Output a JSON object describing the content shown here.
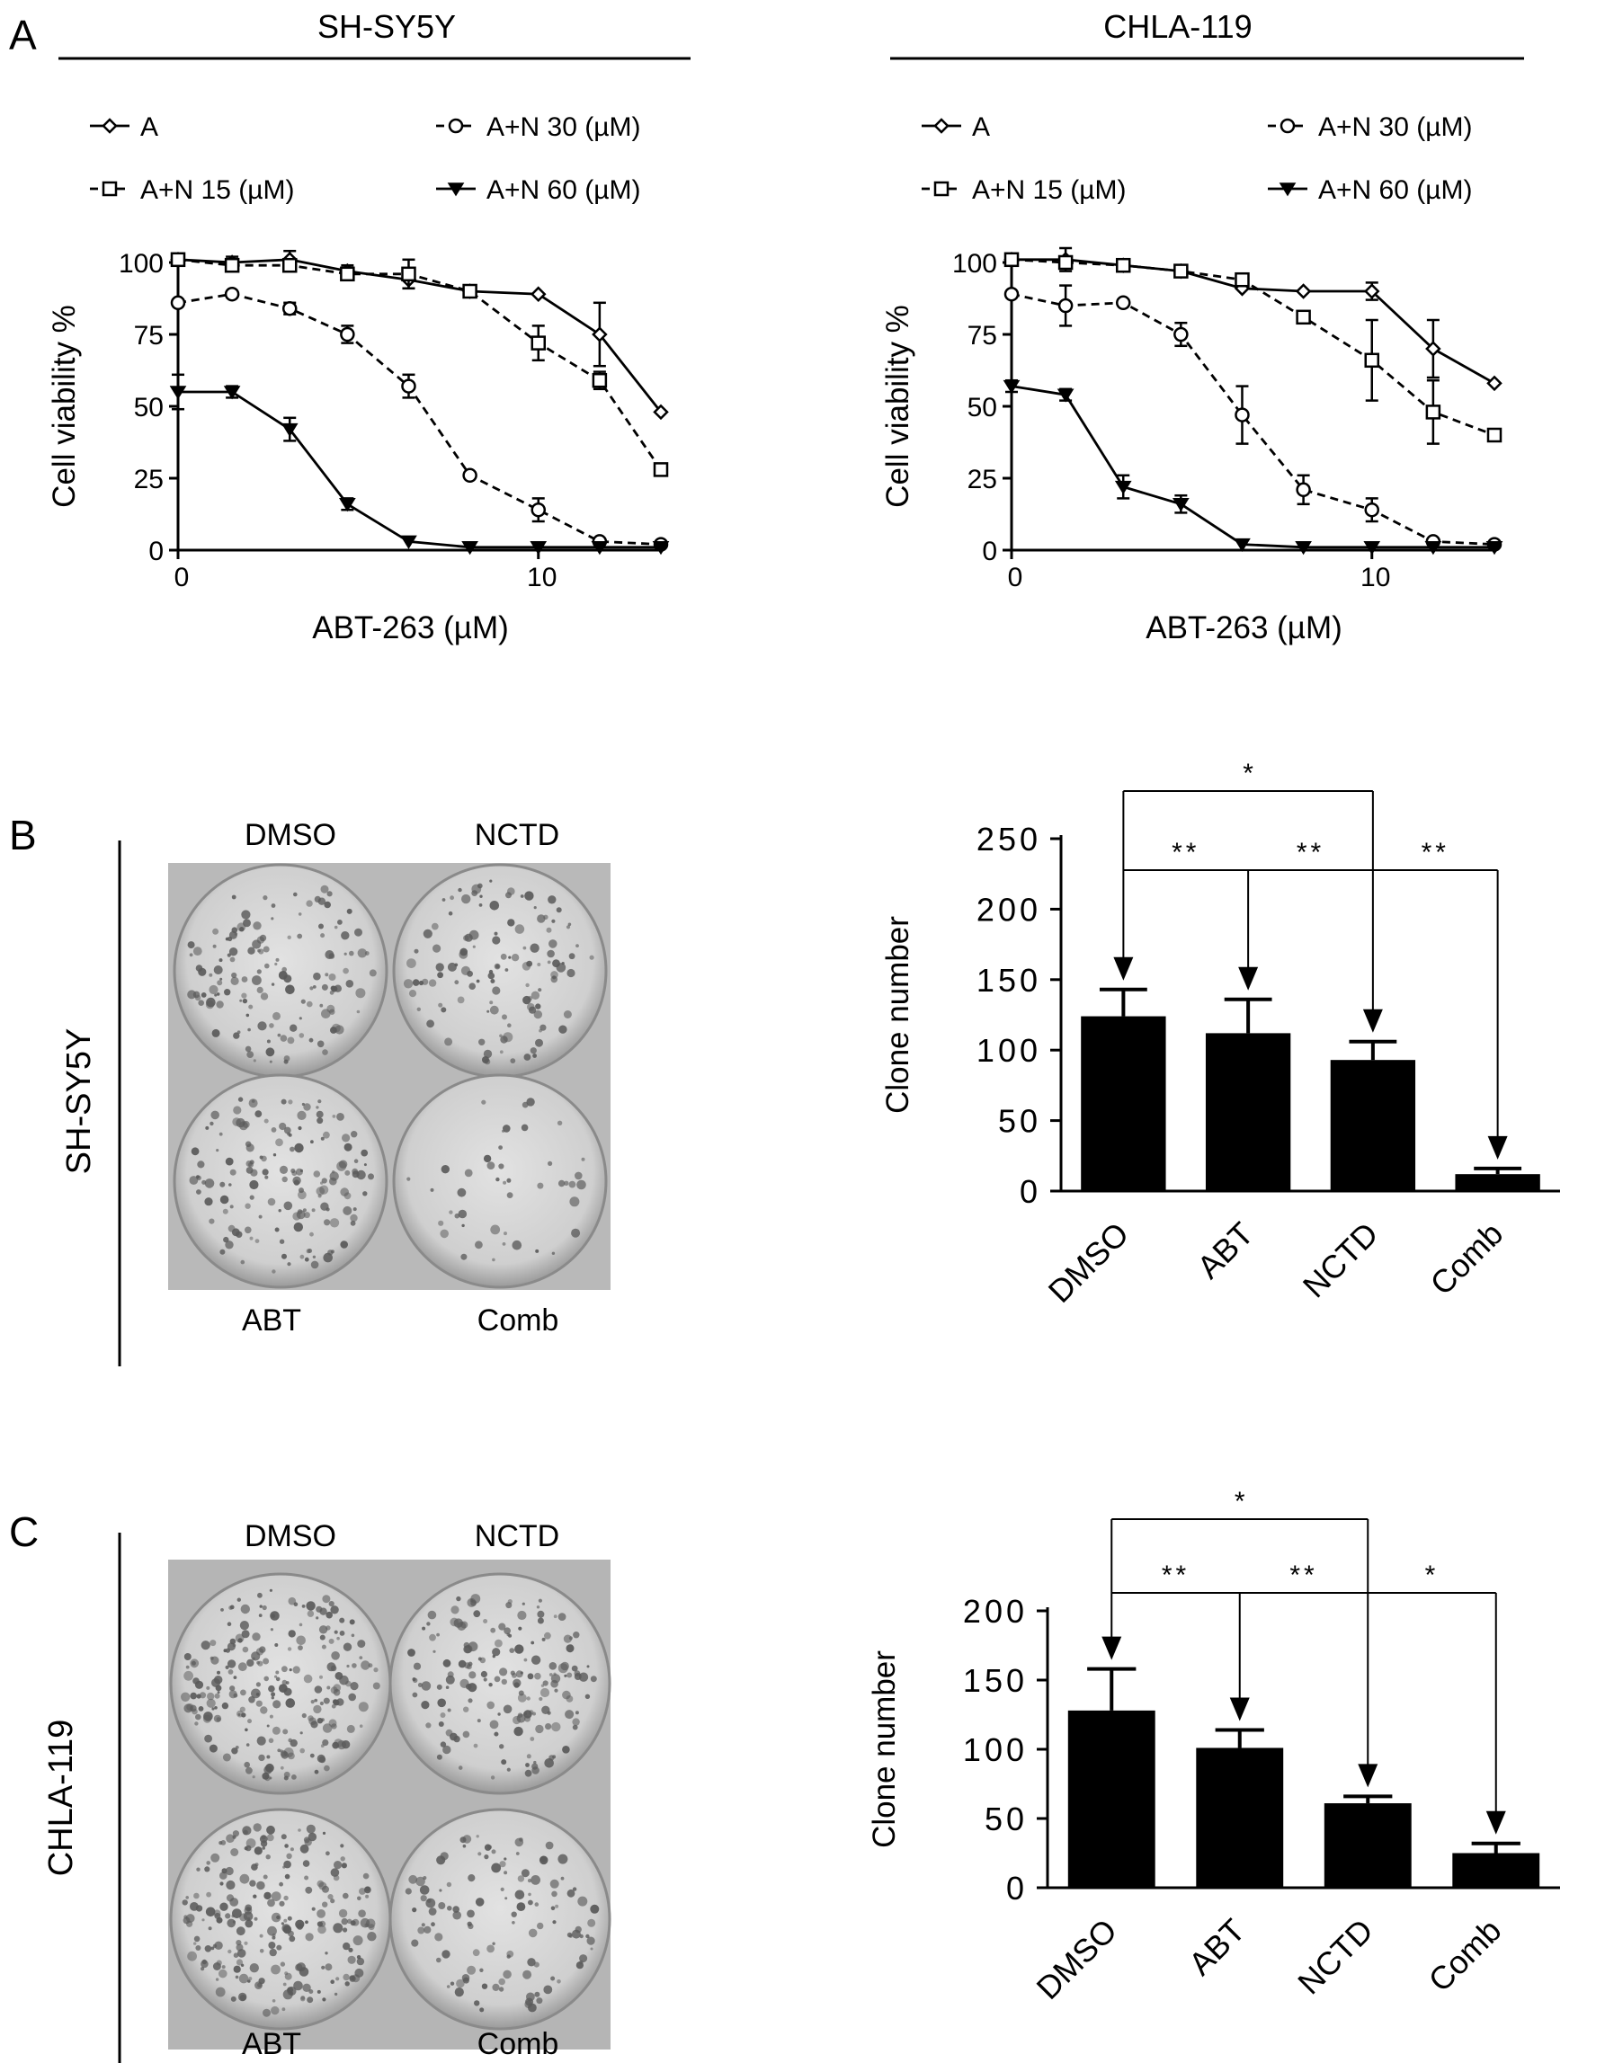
{
  "panels": {
    "A": {
      "letter": "A",
      "sh_title": "SH-SY5Y",
      "chla_title": "CHLA-119"
    },
    "B": {
      "letter": "B",
      "cell_line": "SH-SY5Y"
    },
    "C": {
      "letter": "C",
      "cell_line": "CHLA-119"
    }
  },
  "plate_labels": {
    "top_left": "DMSO",
    "top_right": "NCTD",
    "bottom_left": "ABT",
    "bottom_right": "Comb"
  },
  "colors": {
    "ink": "#000000",
    "plate_bg": "#b9b9b9",
    "well": "#d6d6d6",
    "colony": "#5a5a5a"
  },
  "chart_data": [
    {
      "id": "sh-line",
      "type": "line",
      "x": [
        0,
        1.5,
        3.1,
        4.7,
        6.4,
        8.1,
        10,
        11.7,
        13.4
      ],
      "xticks": [
        "0",
        "10"
      ],
      "yticks": [
        "0",
        "25",
        "50",
        "75",
        "100"
      ],
      "ylim": [
        0,
        100
      ],
      "xlabel": "ABT-263 (µM)",
      "ylabel": "Cell viability %",
      "legend": [
        "A",
        "A+N 30 (µM)",
        "A+N 15 (µM)",
        "A+N 60 (µM)"
      ],
      "series": [
        {
          "name": "A",
          "marker": "diamond",
          "dash": false,
          "values": [
            101,
            100,
            101,
            97,
            94,
            90,
            89,
            75,
            48
          ],
          "err": [
            2,
            2,
            3,
            2,
            3,
            0,
            0,
            11,
            0
          ]
        },
        {
          "name": "A+N 15 (µM)",
          "marker": "square",
          "dash": true,
          "values": [
            101,
            99,
            99,
            96,
            96,
            90,
            72,
            59,
            28
          ],
          "err": [
            2,
            2,
            2,
            1,
            5,
            0,
            6,
            3,
            0
          ]
        },
        {
          "name": "A+N 30 (µM)",
          "marker": "circle",
          "dash": true,
          "values": [
            86,
            89,
            84,
            75,
            57,
            26,
            14,
            3,
            2
          ],
          "err": [
            0,
            0,
            2,
            3,
            4,
            0,
            4,
            0,
            0
          ]
        },
        {
          "name": "A+N 60 (µM)",
          "marker": "triangle",
          "dash": false,
          "values": [
            55,
            55,
            42,
            16,
            3,
            1,
            1,
            1,
            1
          ],
          "err": [
            6,
            2,
            4,
            2,
            0,
            0,
            0,
            0,
            0
          ]
        }
      ]
    },
    {
      "id": "chla-line",
      "type": "line",
      "x": [
        0,
        1.5,
        3.1,
        4.7,
        6.4,
        8.1,
        10,
        11.7,
        13.4
      ],
      "xticks": [
        "0",
        "10"
      ],
      "yticks": [
        "0",
        "25",
        "50",
        "75",
        "100"
      ],
      "ylim": [
        0,
        100
      ],
      "xlabel": "ABT-263 (µM)",
      "ylabel": "Cell viability %",
      "legend": [
        "A",
        "A+N 30 (µM)",
        "A+N 15 (µM)",
        "A+N 60 (µM)"
      ],
      "series": [
        {
          "name": "A",
          "marker": "diamond",
          "dash": false,
          "values": [
            101,
            101,
            99,
            97,
            91,
            90,
            90,
            70,
            58
          ],
          "err": [
            2,
            4,
            2,
            2,
            0,
            0,
            3,
            10,
            0
          ]
        },
        {
          "name": "A+N 15 (µM)",
          "marker": "square",
          "dash": true,
          "values": [
            101,
            100,
            99,
            97,
            94,
            81,
            66,
            48,
            40
          ],
          "err": [
            2,
            2,
            2,
            1,
            0,
            0,
            14,
            11,
            0
          ]
        },
        {
          "name": "A+N 30 (µM)",
          "marker": "circle",
          "dash": true,
          "values": [
            89,
            85,
            86,
            75,
            47,
            21,
            14,
            3,
            2
          ],
          "err": [
            0,
            7,
            0,
            4,
            10,
            5,
            4,
            0,
            0
          ]
        },
        {
          "name": "A+N 60 (µM)",
          "marker": "triangle",
          "dash": false,
          "values": [
            57,
            54,
            22,
            16,
            2,
            1,
            1,
            1,
            1
          ],
          "err": [
            2,
            2,
            4,
            3,
            0,
            0,
            0,
            0,
            0
          ]
        }
      ]
    },
    {
      "id": "sh-bar",
      "type": "bar",
      "categories": [
        "DMSO",
        "ABT",
        "NCTD",
        "Comb"
      ],
      "values": [
        124,
        112,
        93,
        12
      ],
      "err": [
        19,
        24,
        13,
        4
      ],
      "ylim": [
        0,
        250
      ],
      "yticks": [
        "0",
        "50",
        "100",
        "150",
        "200",
        "250"
      ],
      "ylabel": "Clone number",
      "sig_top": "*",
      "sig_low": [
        "**",
        "**",
        "**"
      ]
    },
    {
      "id": "chla-bar",
      "type": "bar",
      "categories": [
        "DMSO",
        "ABT",
        "NCTD",
        "Comb"
      ],
      "values": [
        128,
        101,
        61,
        25
      ],
      "err": [
        30,
        13,
        5,
        7
      ],
      "ylim": [
        0,
        200
      ],
      "yticks": [
        "0",
        "50",
        "100",
        "150",
        "200"
      ],
      "ylabel": "Clone number",
      "sig_top": "*",
      "sig_low": [
        "**",
        "**",
        "*"
      ]
    }
  ]
}
